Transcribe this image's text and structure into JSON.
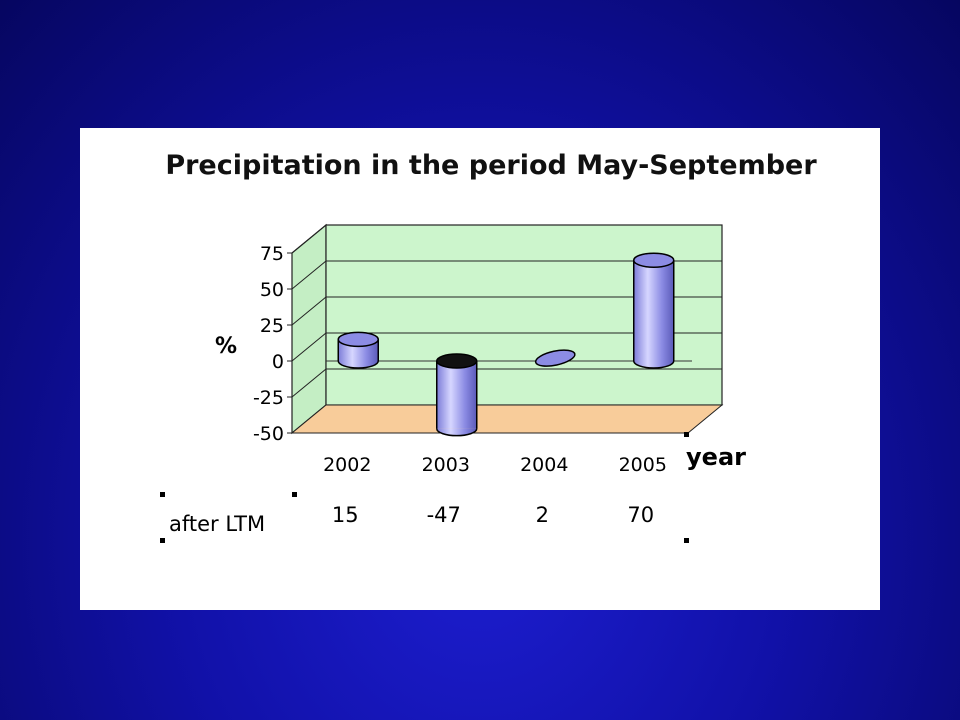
{
  "chart_data": {
    "type": "bar",
    "title": "Precipitation in the period May-September",
    "xlabel": "year",
    "ylabel": "%",
    "categories": [
      "2002",
      "2003",
      "2004",
      "2005"
    ],
    "values": [
      15,
      -47,
      2,
      70
    ],
    "ylim": [
      -50,
      75
    ],
    "yticks": [
      75,
      50,
      25,
      0,
      -25,
      -50
    ],
    "grid": true,
    "table": {
      "row_label": "after LTM",
      "values": [
        "15",
        "-47",
        "2",
        "70"
      ]
    },
    "colors": {
      "bar_front": "#9c9cf0",
      "bar_highlight": "#d6d6ff",
      "bar_shadow": "#5a5ab8",
      "back_wall": "#ccf5cc",
      "floor": "#f8cc9a",
      "background": "#1414b4"
    }
  }
}
